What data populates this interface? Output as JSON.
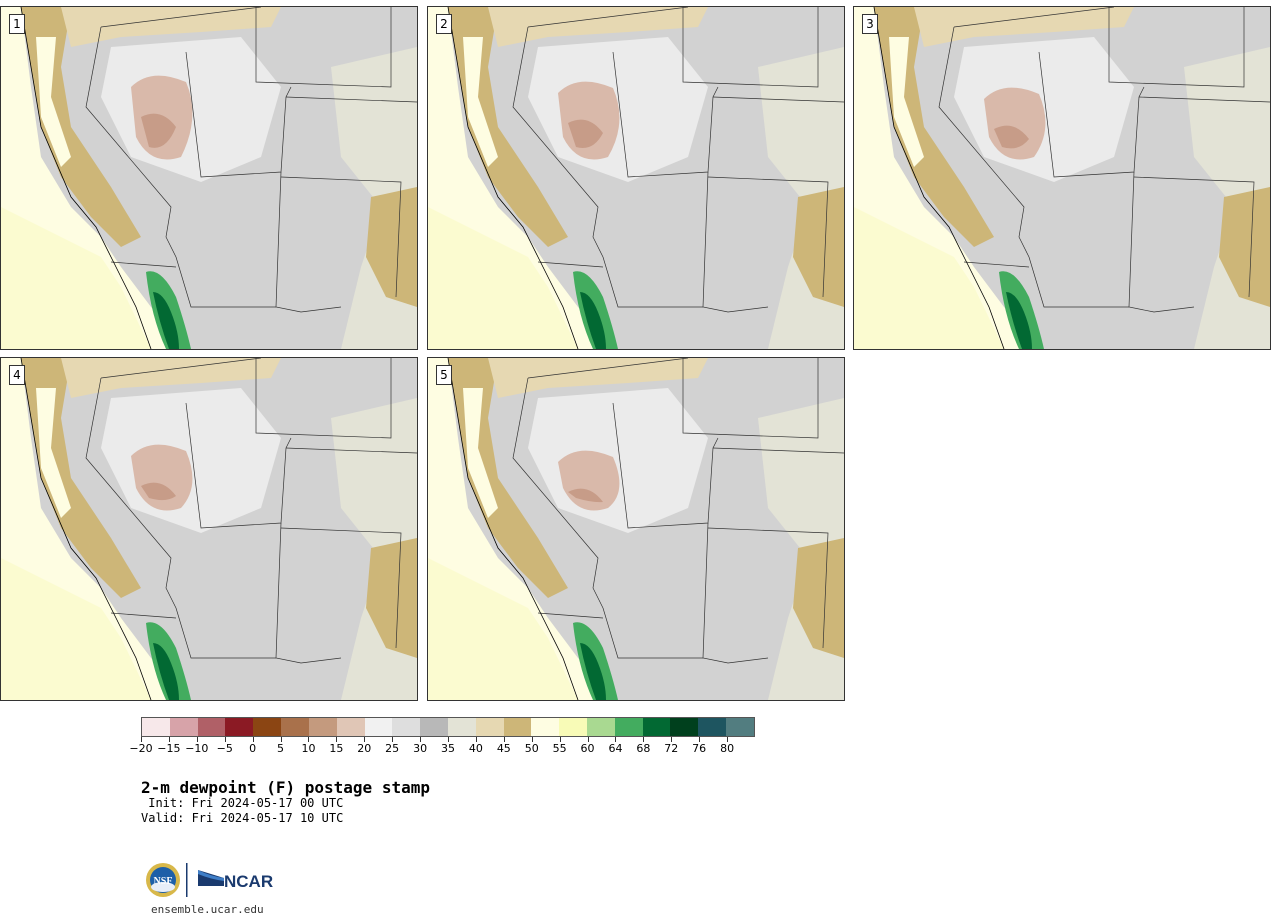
{
  "panels": [
    {
      "label": "1"
    },
    {
      "label": "2"
    },
    {
      "label": "3"
    },
    {
      "label": "4"
    },
    {
      "label": "5"
    }
  ],
  "colorbar": {
    "colors": [
      "#f7e8ea",
      "#d7a3a9",
      "#b06067",
      "#8b1a24",
      "#8b4513",
      "#a9714b",
      "#c49a7e",
      "#e0c6b6",
      "#f1f1f1",
      "#dedede",
      "#b8b8b8",
      "#e3e3d6",
      "#e6d8b2",
      "#cdb678",
      "#fefde2",
      "#f8fbb7",
      "#a9d991",
      "#43ac5f",
      "#026933",
      "#00401d",
      "#1e5560",
      "#527d80"
    ],
    "tick_labels": [
      "−20",
      "−15",
      "−10",
      "−5",
      "0",
      "5",
      "10",
      "15",
      "20",
      "25",
      "30",
      "35",
      "40",
      "45",
      "50",
      "55",
      "60",
      "64",
      "68",
      "72",
      "76",
      "80"
    ]
  },
  "title": "2-m dewpoint (F) postage stamp",
  "init": " Init: Fri 2024-05-17 00 UTC",
  "valid": "Valid: Fri 2024-05-17 10 UTC",
  "logo": {
    "nsf": "NSF",
    "ncar": "NCAR"
  },
  "url": "ensemble.ucar.edu"
}
